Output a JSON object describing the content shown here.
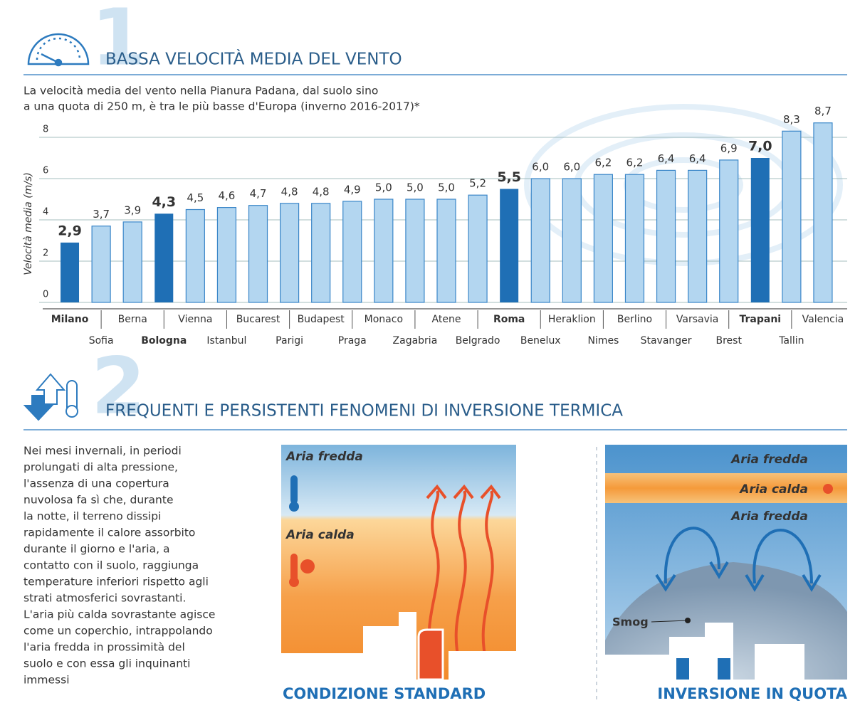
{
  "section1": {
    "number": "1",
    "title": "BASSA VELOCITÀ MEDIA DEL VENTO",
    "description": [
      "La velocità media del vento nella Pianura Padana, dal suolo sino",
      "a una quota di 250 m, è tra le più basse d'Europa (inverno 2016-2017)*"
    ]
  },
  "chart_data": {
    "type": "bar",
    "y_label": "Velocità media (m/s)",
    "categories": [
      "Milano",
      "Sofia",
      "Berna",
      "Bologna",
      "Vienna",
      "Istanbul",
      "Bucarest",
      "Parigi",
      "Budapest",
      "Praga",
      "Monaco",
      "Zagabria",
      "Atene",
      "Belgrado",
      "Roma",
      "Benelux",
      "Heraklion",
      "Nimes",
      "Berlino",
      "Stavanger",
      "Varsavia",
      "Brest",
      "Trapani",
      "Tallin",
      "Valencia"
    ],
    "values": [
      2.9,
      3.7,
      3.9,
      4.3,
      4.5,
      4.6,
      4.7,
      4.8,
      4.8,
      4.9,
      5.0,
      5.0,
      5.0,
      5.2,
      5.5,
      6.0,
      6.0,
      6.2,
      6.2,
      6.4,
      6.4,
      6.9,
      7.0,
      8.3,
      8.7
    ],
    "value_labels": [
      "2,9",
      "3,7",
      "3,9",
      "4,3",
      "4,5",
      "4,6",
      "4,7",
      "4,8",
      "4,8",
      "4,9",
      "5,0",
      "5,0",
      "5,0",
      "5,2",
      "5,5",
      "6,0",
      "6,0",
      "6,2",
      "6,2",
      "6,4",
      "6,4",
      "6,9",
      "7,0",
      "8,3",
      "8,7"
    ],
    "colors": [
      "#1f6fb5",
      "#b3d6f0",
      "#b3d6f0",
      "#1f6fb5",
      "#b3d6f0",
      "#b3d6f0",
      "#b3d6f0",
      "#b3d6f0",
      "#b3d6f0",
      "#b3d6f0",
      "#b3d6f0",
      "#b3d6f0",
      "#b3d6f0",
      "#b3d6f0",
      "#1f6fb5",
      "#b3d6f0",
      "#b3d6f0",
      "#b3d6f0",
      "#b3d6f0",
      "#b3d6f0",
      "#b3d6f0",
      "#b3d6f0",
      "#1f6fb5",
      "#b3d6f0",
      "#b3d6f0"
    ],
    "highlight_color": "#1f6fb5",
    "ylim": [
      0,
      9
    ],
    "yticks": [
      0,
      2,
      4,
      6,
      8
    ],
    "grid": true
  },
  "section2": {
    "number": "2",
    "title": "FREQUENTI E PERSISTENTI FENOMENI DI INVERSIONE TERMICA",
    "paragraph": [
      "Nei mesi invernali, in periodi",
      "prolungati di alta pressione,",
      "l'assenza di una copertura",
      "nuvolosa fa sì che, durante",
      "la notte, il terreno dissipi",
      "rapidamente il calore assorbito",
      "durante il giorno e l'aria, a",
      "contatto con il suolo, raggiunga",
      "temperature inferiori rispetto agli",
      "strati atmosferici sovrastanti.",
      "L'aria più calda sovrastante agisce",
      "come un coperchio, intrappolando",
      "l'aria fredda in prossimità del",
      "suolo e con essa gli inquinanti",
      "immessi"
    ]
  },
  "diagram_standard": {
    "labels": [
      "Aria fredda",
      "Aria calda"
    ],
    "caption": "CONDIZIONE STANDARD"
  },
  "diagram_inversion": {
    "labels": [
      "Aria fredda",
      "Aria calda",
      "Aria fredda",
      "Smog"
    ],
    "caption": "INVERSIONE IN QUOTA"
  }
}
